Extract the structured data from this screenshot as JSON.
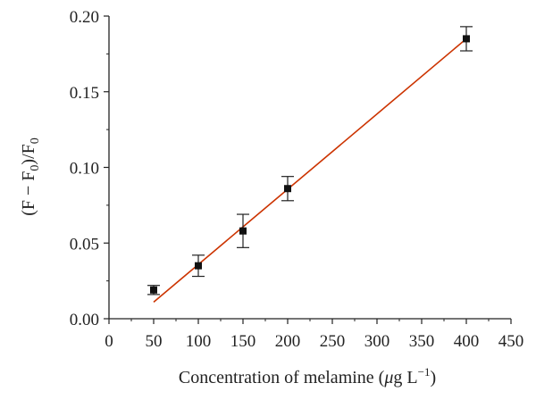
{
  "chart_data": {
    "type": "scatter",
    "xlabel_main": "Concentration of melamine (",
    "xlabel_mu": "μ",
    "xlabel_unit": "g L",
    "xlabel_sup": "−1",
    "xlabel_close": ")",
    "ylabel_a": "(F − F",
    "ylabel_sub1": "0",
    "ylabel_b": ")/F",
    "ylabel_sub2": "0",
    "xlim": [
      0,
      450
    ],
    "ylim": [
      0,
      0.2
    ],
    "x_ticks": [
      0,
      50,
      100,
      150,
      200,
      250,
      300,
      350,
      400,
      450
    ],
    "x_tick_labels": [
      "0",
      "50",
      "100",
      "150",
      "200",
      "250",
      "300",
      "350",
      "400",
      "450"
    ],
    "y_ticks": [
      0,
      0.05,
      0.1,
      0.15,
      0.2
    ],
    "y_tick_labels": [
      "0.00",
      "0.05",
      "0.10",
      "0.15",
      "0.20"
    ],
    "series": [
      {
        "x": [
          50,
          100,
          150,
          200,
          400
        ],
        "y": [
          0.019,
          0.035,
          0.058,
          0.086,
          0.185
        ],
        "error": [
          0.003,
          0.007,
          0.011,
          0.008,
          0.008
        ]
      }
    ],
    "fit_line": {
      "x": [
        50,
        400
      ],
      "y": [
        0.011,
        0.185
      ],
      "color": "#cc3300"
    },
    "marker_color": "#111111",
    "grid": false
  }
}
